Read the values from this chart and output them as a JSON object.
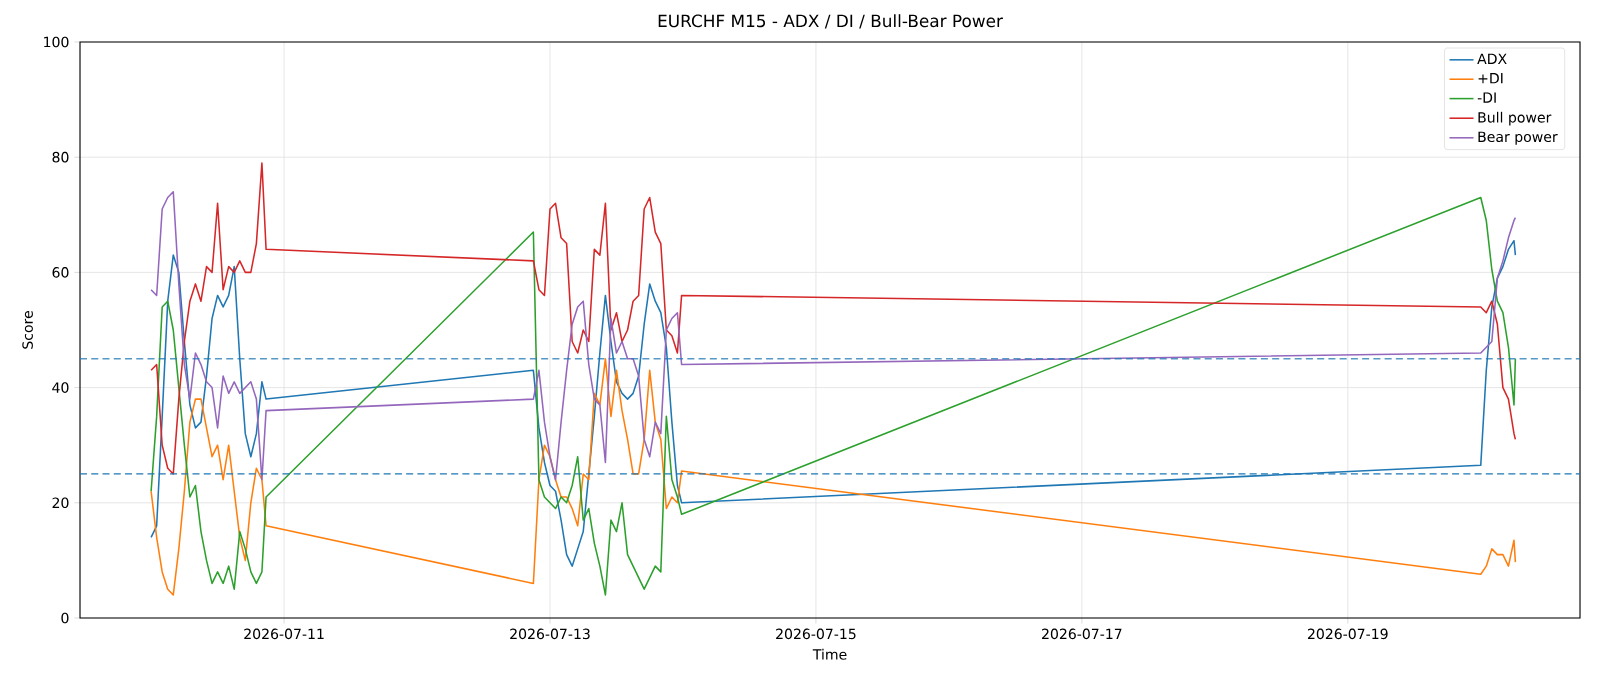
{
  "chart_data": {
    "type": "line",
    "title": "EURCHF M15 - ADX / DI / Bull-Bear Power",
    "xlabel": "Time",
    "ylabel": "Score",
    "x": [
      "2026-07-10T00:00",
      "2026-07-10T01:00",
      "2026-07-10T02:00",
      "2026-07-10T03:00",
      "2026-07-10T04:00",
      "2026-07-10T05:00",
      "2026-07-10T06:00",
      "2026-07-10T07:00",
      "2026-07-10T08:00",
      "2026-07-10T09:00",
      "2026-07-10T10:00",
      "2026-07-10T11:00",
      "2026-07-10T12:00",
      "2026-07-10T13:00",
      "2026-07-10T14:00",
      "2026-07-10T15:00",
      "2026-07-10T16:00",
      "2026-07-10T17:00",
      "2026-07-10T18:00",
      "2026-07-10T19:00",
      "2026-07-10T20:00",
      "2026-07-10T20:45",
      "2026-07-12T21:00",
      "2026-07-12T22:00",
      "2026-07-12T23:00",
      "2026-07-13T00:00",
      "2026-07-13T01:00",
      "2026-07-13T02:00",
      "2026-07-13T03:00",
      "2026-07-13T04:00",
      "2026-07-13T05:00",
      "2026-07-13T06:00",
      "2026-07-13T07:00",
      "2026-07-13T08:00",
      "2026-07-13T09:00",
      "2026-07-13T10:00",
      "2026-07-13T11:00",
      "2026-07-13T12:00",
      "2026-07-13T13:00",
      "2026-07-13T14:00",
      "2026-07-13T15:00",
      "2026-07-13T16:00",
      "2026-07-13T17:00",
      "2026-07-13T18:00",
      "2026-07-13T19:00",
      "2026-07-13T20:00",
      "2026-07-13T21:00",
      "2026-07-13T22:00",
      "2026-07-13T23:00",
      "2026-07-13T23:45",
      "2026-07-20T00:00",
      "2026-07-20T01:00",
      "2026-07-20T02:00",
      "2026-07-20T03:00",
      "2026-07-20T04:00",
      "2026-07-20T05:00",
      "2026-07-20T06:00",
      "2026-07-20T06:15"
    ],
    "series": [
      {
        "name": "ADX",
        "color": "#1f77b4",
        "values": [
          14,
          16,
          35,
          55,
          63,
          60,
          48,
          37,
          33,
          34,
          42,
          52,
          56,
          54,
          56,
          61,
          45,
          32,
          28,
          32,
          41,
          38,
          43,
          33,
          27,
          23,
          22,
          17,
          11,
          9,
          12,
          15,
          25,
          35,
          46,
          56,
          48,
          41,
          39,
          38,
          39,
          42,
          51,
          58,
          55,
          53,
          47,
          34,
          23,
          20,
          26.5,
          43,
          54,
          59,
          61,
          64,
          65.5,
          63
        ]
      },
      {
        "name": "+DI",
        "color": "#ff7f0e",
        "values": [
          22,
          14,
          8,
          5,
          4,
          12,
          22,
          34,
          38,
          38,
          33,
          28,
          30,
          24,
          30,
          22,
          14,
          10,
          20,
          26,
          24,
          16,
          6,
          24,
          30,
          28,
          24,
          21,
          21,
          19,
          16,
          25,
          24,
          39,
          37,
          45,
          35,
          43,
          36,
          31,
          25,
          25,
          31,
          43,
          34,
          31,
          19,
          21,
          20,
          25.5,
          7.6,
          9,
          12,
          11,
          11,
          9,
          13.5,
          9.7
        ]
      },
      {
        "name": "-DI",
        "color": "#2ca02c",
        "values": [
          22,
          35,
          54,
          55,
          50,
          40,
          30,
          21,
          23,
          15,
          10,
          6,
          8,
          6,
          9,
          5,
          15,
          12,
          8,
          6,
          8,
          21,
          67,
          24,
          21,
          20,
          19,
          21,
          20,
          23,
          28,
          17,
          19,
          13,
          9,
          4,
          17,
          15,
          20,
          11,
          9,
          7,
          5,
          7,
          9,
          8,
          35,
          24,
          21,
          18,
          73,
          69,
          60.5,
          55,
          53,
          47,
          37,
          45
        ]
      },
      {
        "name": "Bull power",
        "color": "#d62728",
        "values": [
          43,
          44,
          30,
          26,
          25,
          38,
          48,
          55,
          58,
          55,
          61,
          60,
          72,
          57,
          61,
          60,
          62,
          60,
          60,
          65,
          79,
          64,
          62,
          57,
          56,
          71,
          72,
          66,
          65,
          48,
          46,
          50,
          48,
          64,
          63,
          72,
          50,
          53,
          48,
          50,
          55,
          56,
          71,
          73,
          67,
          65,
          50,
          49,
          46,
          56,
          54,
          53,
          55,
          51,
          40,
          38,
          32,
          31
        ]
      },
      {
        "name": "Bear power",
        "color": "#9467bd",
        "values": [
          57,
          56,
          71,
          73,
          74,
          58,
          44,
          38,
          46,
          44,
          41,
          40,
          33,
          42,
          39,
          41,
          39,
          40,
          41,
          38,
          24,
          36,
          38,
          43,
          34,
          28,
          24,
          34,
          43,
          51,
          54,
          55,
          44,
          38,
          37,
          27,
          52,
          46,
          48,
          45,
          45,
          42,
          31,
          28,
          34,
          32,
          50,
          52,
          53,
          44,
          46,
          47,
          48,
          59,
          62,
          66,
          69,
          69.5
        ]
      }
    ],
    "xlim": [
      "2026-07-09T11:10",
      "2026-07-20T17:55"
    ],
    "xticks": [
      "2026-07-11",
      "2026-07-13",
      "2026-07-15",
      "2026-07-17",
      "2026-07-19"
    ],
    "ylim": [
      0,
      100
    ],
    "yticks": [
      0,
      20,
      40,
      60,
      80,
      100
    ],
    "ref_lines": [
      {
        "axis": "y",
        "value": 45,
        "color": "#1f77b4",
        "line_style": "dashed"
      },
      {
        "axis": "y",
        "value": 25,
        "color": "#1f77b4",
        "line_style": "dashed"
      }
    ],
    "grid": true,
    "legend": "top right",
    "line_style": "solid",
    "marker": "none"
  }
}
